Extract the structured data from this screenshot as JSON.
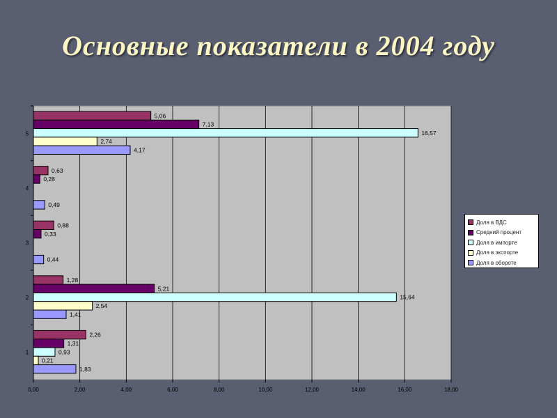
{
  "slide": {
    "title": "Основные показатели в 2004 году"
  },
  "colors": {
    "background": "#595e70",
    "plot_area": "#c0c0c0",
    "grid": "#000000",
    "title": "#fbf6c4"
  },
  "chart_data": {
    "type": "bar",
    "orientation": "horizontal",
    "categories": [
      "1",
      "2",
      "3",
      "4",
      "5"
    ],
    "series": [
      {
        "name": "Доля в ВДС",
        "color": "#993366",
        "values": [
          2.26,
          1.28,
          0.88,
          0.63,
          5.06
        ],
        "labels": [
          "2,26",
          "1,28",
          "0,88",
          "0,63",
          "5,06"
        ]
      },
      {
        "name": "Средний процент",
        "color": "#660066",
        "values": [
          1.31,
          5.21,
          0.33,
          0.28,
          7.13
        ],
        "labels": [
          "1,31",
          "5,21",
          "0,33",
          "0,28",
          "7,13"
        ]
      },
      {
        "name": "Доля в импорте",
        "color": "#ccffff",
        "values": [
          0.93,
          15.64,
          null,
          null,
          16.57
        ],
        "labels": [
          "0,93",
          "15,64",
          "",
          "",
          "16,57"
        ]
      },
      {
        "name": "Доля в экспорте",
        "color": "#ffffcc",
        "values": [
          0.21,
          2.54,
          null,
          null,
          2.74
        ],
        "labels": [
          "0,21",
          "2,54",
          "",
          "",
          "2,74"
        ]
      },
      {
        "name": "Доля в обороте",
        "color": "#9999ff",
        "values": [
          1.83,
          1.41,
          0.44,
          0.49,
          4.17
        ],
        "labels": [
          "1,83",
          "1,41",
          "0,44",
          "0,49",
          "4,17"
        ]
      }
    ],
    "xlim": [
      0,
      18
    ],
    "xticks": [
      0,
      2,
      4,
      6,
      8,
      10,
      12,
      14,
      16,
      18
    ],
    "xtick_labels": [
      "0,00",
      "2,00",
      "4,00",
      "6,00",
      "8,00",
      "10,00",
      "12,00",
      "14,00",
      "16,00",
      "18,00"
    ],
    "grid": "vertical",
    "legend_position": "right"
  }
}
